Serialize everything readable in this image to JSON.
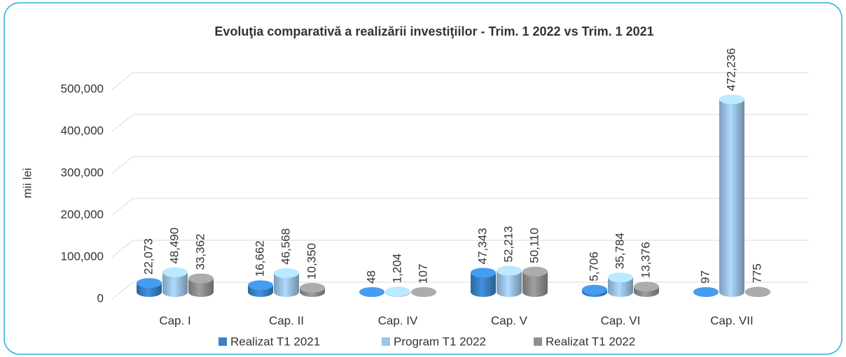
{
  "chart_data": {
    "type": "bar3d",
    "title": "Evoluţia comparativă a realizării investiţiilor - Trim. 1 2022 vs Trim. 1 2021",
    "y_label": "mii lei",
    "categories": [
      "Cap. I",
      "Cap. II",
      "Cap. IV",
      "Cap. V",
      "Cap. VI",
      "Cap. VII"
    ],
    "series": [
      {
        "name": "Realizat T1 2021",
        "color": "#3a82c8",
        "values": [
          22073,
          16662,
          48,
          47343,
          5706,
          97
        ],
        "value_labels": [
          "22,073",
          "16,662",
          "48",
          "47,343",
          "5,706",
          "97"
        ]
      },
      {
        "name": "Program T1 2022",
        "color": "#9cc3e8",
        "values": [
          48490,
          46568,
          1204,
          52213,
          35784,
          472236
        ],
        "value_labels": [
          "48,490",
          "46,568",
          "1,204",
          "52,213",
          "35,784",
          "472,236"
        ]
      },
      {
        "name": "Realizat T1 2022",
        "color": "#8f8f8f",
        "values": [
          33362,
          10350,
          107,
          50110,
          13376,
          775
        ],
        "value_labels": [
          "33,362",
          "10,350",
          "107",
          "50,110",
          "13,376",
          "775"
        ]
      }
    ],
    "ylim": [
      0,
      500000
    ],
    "yticks": [
      0,
      {
        "value": 100000,
        "label": "100,000"
      },
      {
        "value": 200000,
        "label": "200,000"
      },
      {
        "value": 300000,
        "label": "300,000"
      },
      {
        "value": 400000,
        "label": "400,000"
      },
      {
        "value": 500000,
        "label": "500,000"
      }
    ],
    "grid": true,
    "legend": "bottom"
  }
}
